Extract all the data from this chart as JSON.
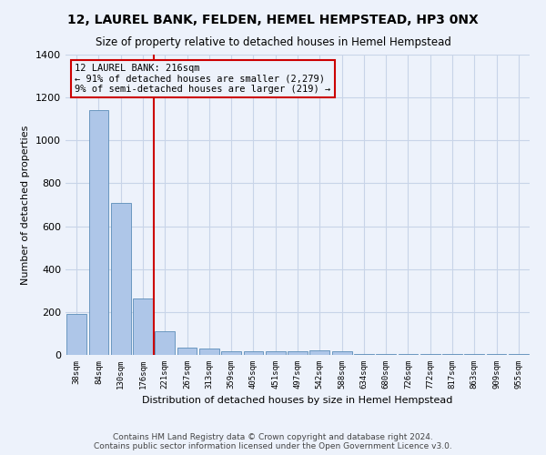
{
  "title": "12, LAUREL BANK, FELDEN, HEMEL HEMPSTEAD, HP3 0NX",
  "subtitle": "Size of property relative to detached houses in Hemel Hempstead",
  "xlabel": "Distribution of detached houses by size in Hemel Hempstead",
  "ylabel": "Number of detached properties",
  "categories": [
    "38sqm",
    "84sqm",
    "130sqm",
    "176sqm",
    "221sqm",
    "267sqm",
    "313sqm",
    "359sqm",
    "405sqm",
    "451sqm",
    "497sqm",
    "542sqm",
    "588sqm",
    "634sqm",
    "680sqm",
    "726sqm",
    "772sqm",
    "817sqm",
    "863sqm",
    "909sqm",
    "955sqm"
  ],
  "values": [
    190,
    1140,
    710,
    265,
    110,
    35,
    28,
    15,
    15,
    15,
    15,
    20,
    15,
    5,
    5,
    5,
    5,
    5,
    5,
    5,
    5
  ],
  "bar_color": "#aec6e8",
  "bar_edge_color": "#5b8db8",
  "grid_color": "#c8d4e8",
  "background_color": "#edf2fb",
  "red_line_x": 3.5,
  "annotation_text": "12 LAUREL BANK: 216sqm\n← 91% of detached houses are smaller (2,279)\n9% of semi-detached houses are larger (219) →",
  "annotation_box_color": "#cc0000",
  "ylim": [
    0,
    1400
  ],
  "yticks": [
    0,
    200,
    400,
    600,
    800,
    1000,
    1200,
    1400
  ],
  "footer": "Contains HM Land Registry data © Crown copyright and database right 2024.\nContains public sector information licensed under the Open Government Licence v3.0."
}
